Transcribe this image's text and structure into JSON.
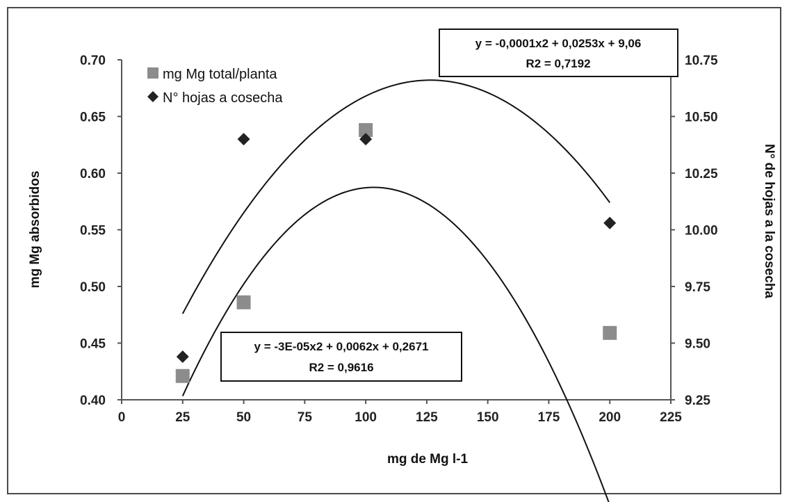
{
  "chart_data": {
    "type": "scatter",
    "xlabel": "mg de Mg l-1",
    "ylabel": "mg Mg absorbidos",
    "y2label": "N° de hojas a la cosecha",
    "xlim": [
      0,
      225
    ],
    "ylim": [
      0.4,
      0.7
    ],
    "y2lim": [
      9.25,
      10.75
    ],
    "x_ticks": [
      "0",
      "25",
      "50",
      "75",
      "100",
      "125",
      "150",
      "175",
      "200",
      "225"
    ],
    "y_ticks": [
      "0.40",
      "0.45",
      "0.50",
      "0.55",
      "0.60",
      "0.65",
      "0.70"
    ],
    "y2_ticks": [
      "9.25",
      "9.50",
      "9.75",
      "10.00",
      "10.25",
      "10.50",
      "10.75"
    ],
    "grid": false,
    "legend_position": "top-left",
    "series": [
      {
        "name": "mg Mg total/planta",
        "axis": "left",
        "marker": "square",
        "color": "#8c8c8c",
        "x": [
          25,
          50,
          100,
          200
        ],
        "y": [
          0.421,
          0.486,
          0.638,
          0.459
        ],
        "trendline": {
          "type": "polynomial",
          "coefficients": [
            -3e-05,
            0.0062,
            0.2671
          ],
          "range": [
            25,
            200
          ],
          "equation": "y = -3E-05x2 + 0,0062x + 0,2671",
          "r2": "R2 = 0,9616"
        }
      },
      {
        "name": "N° hojas a cosecha",
        "axis": "right",
        "marker": "diamond",
        "color": "#222222",
        "x": [
          25,
          50,
          100,
          200
        ],
        "y": [
          9.44,
          10.4,
          10.4,
          10.03
        ],
        "trendline": {
          "type": "polynomial",
          "coefficients": [
            -0.0001,
            0.0253,
            9.06
          ],
          "range": [
            25,
            200
          ],
          "equation": "y = -0,0001x2 + 0,0253x + 9,06",
          "r2": "R2 = 0,7192"
        }
      }
    ]
  }
}
